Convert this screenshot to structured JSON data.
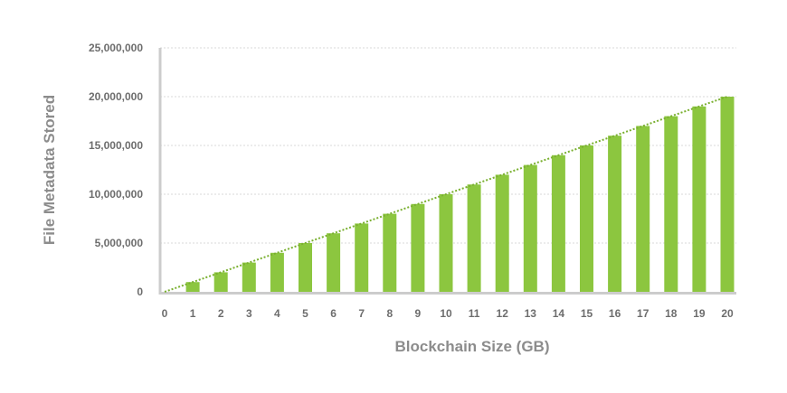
{
  "chart_data": {
    "type": "bar",
    "xlabel": "Blockchain Size (GB)",
    "ylabel": "File Metadata Stored",
    "categories": [
      "0",
      "1",
      "2",
      "3",
      "4",
      "5",
      "6",
      "7",
      "8",
      "9",
      "10",
      "11",
      "12",
      "13",
      "14",
      "15",
      "16",
      "17",
      "18",
      "19",
      "20"
    ],
    "values": [
      0,
      1000000,
      2000000,
      3000000,
      4000000,
      5000000,
      6000000,
      7000000,
      8000000,
      9000000,
      10000000,
      11000000,
      12000000,
      13000000,
      14000000,
      15000000,
      16000000,
      17000000,
      18000000,
      19000000,
      20000000
    ],
    "ylim": [
      0,
      25000000
    ],
    "yticks": [
      0,
      5000000,
      10000000,
      15000000,
      20000000,
      25000000
    ],
    "ytick_labels": [
      "0",
      "5,000,000",
      "10,000,000",
      "15,000,000",
      "20,000,000",
      "25,000,000"
    ],
    "grid": true,
    "trendline": true,
    "colors": {
      "bar": "#8cc63f",
      "trend": "#7ab030",
      "grid": "#d9d9d9",
      "axis": "#cccccc"
    }
  }
}
